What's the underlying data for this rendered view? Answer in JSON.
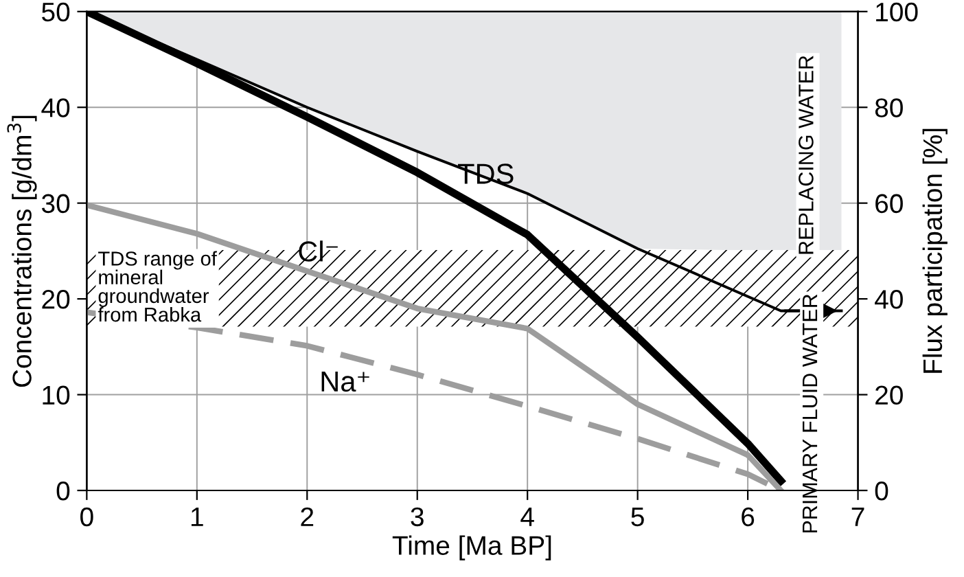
{
  "chart_data": {
    "type": "line",
    "xlabel": "Time [Ma BP]",
    "ylabel": "Concentrations [g/dm$^{3}$]",
    "y2label": "Flux participation [%]",
    "xlim": [
      0,
      7
    ],
    "xticks": [
      0,
      1,
      2,
      3,
      4,
      5,
      6,
      7
    ],
    "ylim": [
      0,
      50
    ],
    "yticks": [
      0,
      10,
      20,
      30,
      40,
      50
    ],
    "y2lim": [
      0,
      100
    ],
    "y2ticks": [
      0,
      20,
      40,
      60,
      80,
      100
    ],
    "grid": true,
    "marker": "none",
    "series": [
      {
        "axis": "y2",
        "color": "#000000",
        "x": [
          0,
          1,
          2,
          3,
          4,
          5,
          6.3,
          6.85
        ],
        "values": [
          100,
          90,
          80,
          70.8,
          62,
          50.5,
          37.5,
          37.5
        ],
        "lower": [
          100,
          90,
          80,
          70.8,
          62,
          50.5,
          50,
          50
        ],
        "upper": [
          100,
          100,
          100,
          100,
          100,
          100,
          100,
          100
        ]
      },
      {
        "name": "TDS",
        "color": "#000000",
        "x": [
          0,
          1,
          2,
          3,
          4,
          5,
          6,
          6.3
        ],
        "values": [
          50,
          44.6,
          39,
          33.2,
          26.7,
          16,
          4.9,
          1
        ]
      },
      {
        "name": "Cl⁻",
        "color": "#9d9d9d",
        "x": [
          0,
          1,
          2,
          3,
          4,
          5,
          6,
          6.3
        ],
        "values": [
          29.8,
          26.8,
          22.9,
          19,
          16.9,
          9,
          3.7,
          0
        ]
      },
      {
        "name": "Na⁺",
        "color": "#9d9d9d",
        "line_style": "dashed",
        "x": [
          0,
          1,
          2,
          3,
          4,
          5,
          6,
          6.3
        ],
        "values": [
          18.6,
          17,
          15.1,
          12.1,
          8.8,
          5.4,
          1.7,
          0
        ]
      }
    ],
    "bands": [
      {
        "axis": "y",
        "from": 17.1,
        "to": 25.1,
        "label": "TDS range of mineral groundwater from Rabka"
      }
    ],
    "annotations": [
      "REPLACING WATER",
      "PRIMARY FLUID WATER"
    ]
  }
}
